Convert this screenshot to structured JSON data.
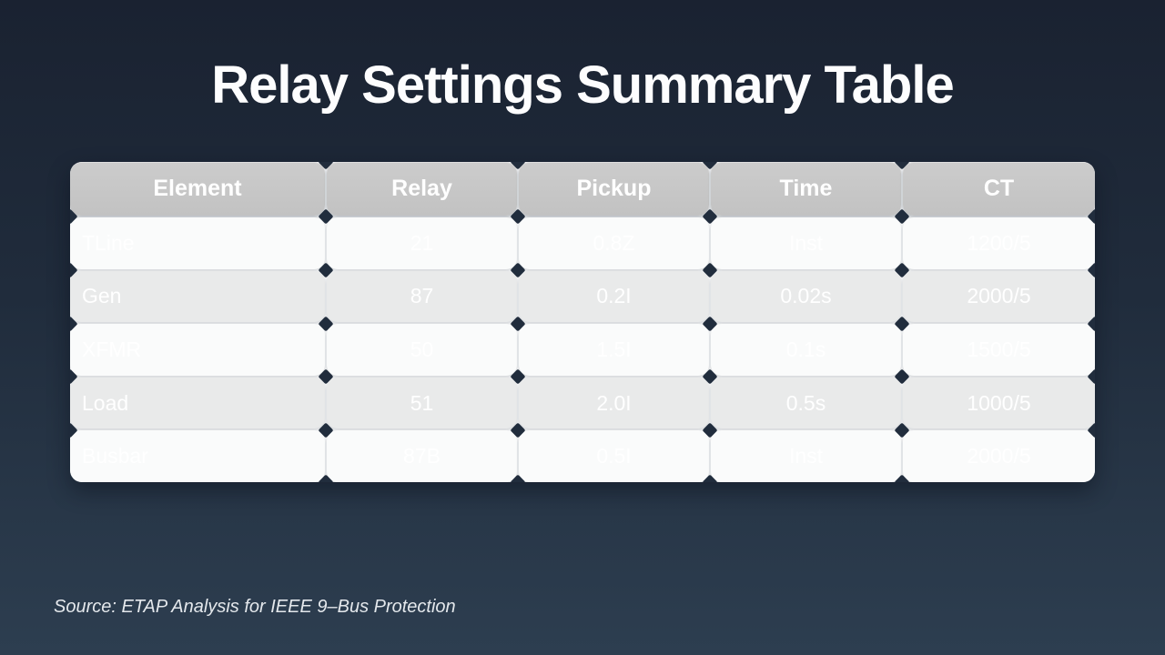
{
  "slide": {
    "title": "Relay Settings Summary Table",
    "source_note": "Source: ETAP Analysis for IEEE 9–Bus Protection"
  },
  "chart_data": {
    "type": "table",
    "title": "Relay Settings Summary Table",
    "columns": [
      "Element",
      "Relay",
      "Pickup",
      "Time",
      "CT"
    ],
    "rows": [
      [
        "TLine",
        "21",
        "0.8Z",
        "Inst",
        "1200/5"
      ],
      [
        "Gen",
        "87",
        "0.2I",
        "0.02s",
        "2000/5"
      ],
      [
        "XFMR",
        "50",
        "1.5I",
        "0.1s",
        "1500/5"
      ],
      [
        "Load",
        "51",
        "2.0I",
        "0.5s",
        "1000/5"
      ],
      [
        "Busbar",
        "87B",
        "0.5I",
        "Inst",
        "2000/5"
      ]
    ],
    "source": "Source: ETAP Analysis for IEEE 9–Bus Protection",
    "layout_hints": {
      "header_text_align": "center",
      "first_column_align": "left",
      "other_columns_align": "center",
      "row_striping": "odd-light, even-gray"
    }
  },
  "colors": {
    "background_top": "#1a2231",
    "background_bottom": "#2d3e50",
    "header_bg": "#c6c6c6",
    "row_odd_bg": "#fafbfb",
    "row_even_bg": "#e9eaea",
    "cell_text": "#ffffff",
    "junction_diamond": "#212d3d",
    "title_text": "#fdfdfe",
    "source_text": "#e4e8ec"
  }
}
